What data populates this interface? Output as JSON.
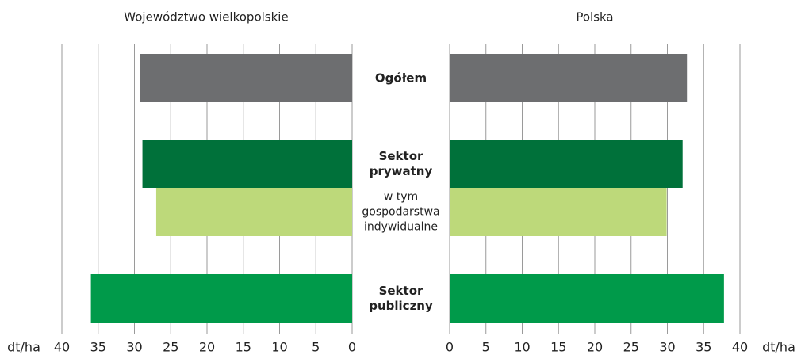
{
  "chart_data": [
    {
      "type": "bar",
      "title": "Województwo wielkopolskie",
      "categories": [
        "Ogółem",
        "Sektor prywatny",
        "w tym gospodarstwa indywidualne",
        "Sektor publiczny"
      ],
      "values": [
        29.2,
        28.9,
        27.0,
        36.0
      ],
      "colors": [
        "#6d6e70",
        "#00713a",
        "#bdd97a",
        "#009a4a"
      ],
      "xlim": [
        40,
        0
      ],
      "xticks": [
        40,
        35,
        30,
        25,
        20,
        15,
        10,
        5,
        0
      ],
      "xlabel": "dt/ha",
      "grid": true
    },
    {
      "type": "bar",
      "title": "Polska",
      "values": [
        32.7,
        32.1,
        29.9,
        37.8
      ],
      "colors": [
        "#6d6e70",
        "#00713a",
        "#bdd97a",
        "#009a4a"
      ],
      "xlim": [
        0,
        40
      ],
      "xticks": [
        0,
        5,
        10,
        15,
        20,
        25,
        30,
        35,
        40
      ],
      "xlabel": "dt/ha",
      "grid": true
    }
  ]
}
